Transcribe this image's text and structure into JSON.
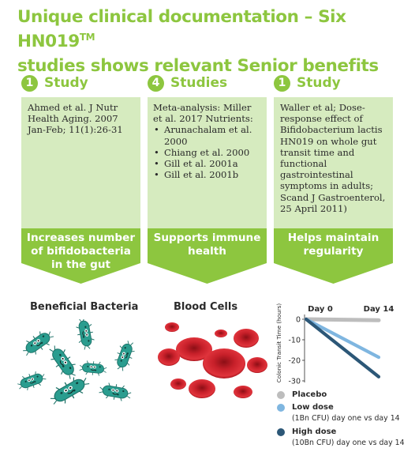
{
  "title": {
    "line1": "Unique clinical documentation – Six HN019",
    "tm": "TM",
    "line2": "studies shows relevant Senior benefits"
  },
  "columns": [
    {
      "count": "1",
      "label": "Study",
      "text": "Ahmed et al. J Nutr Health Aging. 2007 Jan-Feb; 11(1):26-31",
      "banner": [
        "Increases number",
        "of bifidobacteria",
        "in the gut"
      ],
      "illustration_label": "Beneficial Bacteria"
    },
    {
      "count": "4",
      "label": "Studies",
      "text": "Meta-analysis: Miller et al.  2017  Nutrients:",
      "bullets": [
        "Arunachalam et al. 2000",
        "Chiang et al. 2000",
        "Gill et al. 2001a",
        "Gill et al. 2001b"
      ],
      "banner": [
        "Supports immune",
        "health"
      ],
      "illustration_label": "Blood Cells"
    },
    {
      "count": "1",
      "label": "Study",
      "text": "Waller et al; Dose-response effect of Bifidobacterium lactis HN019 on whole gut transit time and functional gastrointestinal symptoms in adults; Scand J Gastroenterol, 25 April 2011)",
      "banner": [
        "Helps maintain",
        "regularity"
      ]
    }
  ],
  "colors": {
    "accent": "#8dc63f",
    "panel": "#d6ebbf",
    "bacteria": "#2a9d8f",
    "blood": "#c8202a"
  },
  "chart_data": {
    "type": "line",
    "x": [
      "Day 0",
      "Day 14"
    ],
    "ylabel": "Colonic Transit Time (hours)",
    "ylim": [
      -30,
      0
    ],
    "yticks": [
      0,
      -10,
      -20,
      -30
    ],
    "series": [
      {
        "name": "Placebo",
        "values": [
          0,
          -0.5
        ],
        "color": "#bdbdbd"
      },
      {
        "name": "Low dose",
        "sub": "(1Bn CFU) day one vs day 14",
        "values": [
          0,
          -18.5
        ],
        "color": "#7fb6e0"
      },
      {
        "name": "High dose",
        "sub": "(10Bn CFU) day one vs day 14",
        "values": [
          0,
          -28
        ],
        "color": "#2c5777"
      }
    ]
  }
}
